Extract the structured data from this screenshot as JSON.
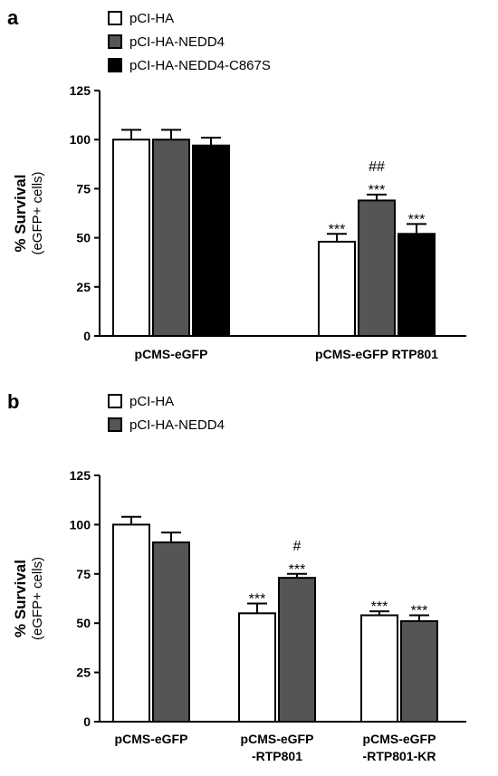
{
  "chart_data": [
    {
      "panel": "a",
      "type": "bar",
      "categories": [
        "pCMS-eGFP",
        "pCMS-eGFP RTP801"
      ],
      "series": [
        {
          "name": "pCI-HA",
          "color": "#ffffff",
          "values": [
            100,
            48
          ],
          "errors": [
            5,
            4
          ],
          "annotations": [
            "",
            "***"
          ]
        },
        {
          "name": "pCI-HA-NEDD4",
          "color": "#555555",
          "values": [
            100,
            69
          ],
          "errors": [
            5,
            3
          ],
          "annotations": [
            "",
            "***\n##"
          ]
        },
        {
          "name": "pCI-HA-NEDD4-C867S",
          "color": "#000000",
          "values": [
            97,
            52
          ],
          "errors": [
            4,
            5
          ],
          "annotations": [
            "",
            "***"
          ]
        }
      ],
      "ylabel": "% Survival",
      "ylabel_sub": "(eGFP+ cells)",
      "ylim": [
        0,
        125
      ],
      "yticks": [
        "0",
        "25",
        "50",
        "75",
        "100",
        "125"
      ],
      "legend": "top-left",
      "grid": false
    },
    {
      "panel": "b",
      "type": "bar",
      "categories": [
        "pCMS-eGFP",
        "pCMS-eGFP\n-RTP801",
        "pCMS-eGFP\n-RTP801-KR"
      ],
      "series": [
        {
          "name": "pCI-HA",
          "color": "#ffffff",
          "values": [
            100,
            55,
            54
          ],
          "errors": [
            4,
            5,
            2
          ],
          "annotations": [
            "",
            "***",
            "***"
          ]
        },
        {
          "name": "pCI-HA-NEDD4",
          "color": "#555555",
          "values": [
            91,
            73,
            51
          ],
          "errors": [
            5,
            2,
            3
          ],
          "annotations": [
            "",
            "***\n#",
            "***"
          ]
        }
      ],
      "ylabel": "% Survival",
      "ylabel_sub": "(eGFP+ cells)",
      "ylim": [
        0,
        125
      ],
      "yticks": [
        "0",
        "25",
        "50",
        "75",
        "100",
        "125"
      ],
      "legend": "top-left",
      "grid": false
    }
  ]
}
